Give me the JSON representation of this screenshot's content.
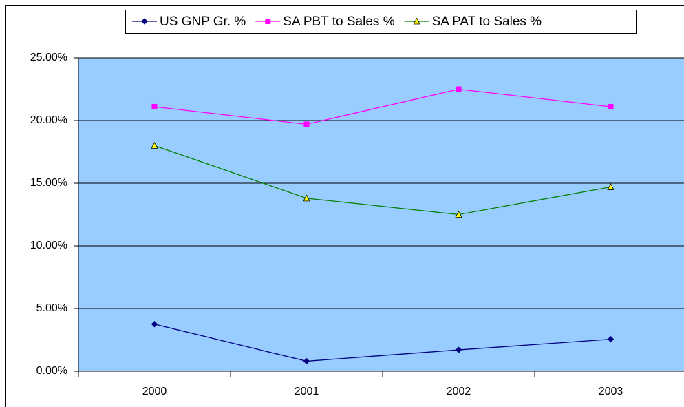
{
  "chart_data": {
    "type": "line",
    "categories": [
      "2000",
      "2001",
      "2002",
      "2003"
    ],
    "series": [
      {
        "name": "US GNP Gr. %",
        "color": "#000080",
        "marker": "diamond",
        "marker_color": "#000080",
        "values": [
          3.75,
          0.8,
          1.7,
          2.55
        ]
      },
      {
        "name": "SA PBT to Sales %",
        "color": "#ff00ff",
        "marker": "square",
        "marker_color": "#ff00ff",
        "values": [
          21.1,
          19.7,
          22.5,
          21.1
        ]
      },
      {
        "name": "SA PAT to Sales %",
        "color": "#008000",
        "marker": "triangle",
        "marker_color": "#ffff00",
        "values": [
          18.0,
          13.8,
          12.5,
          14.7
        ]
      }
    ],
    "ylim": [
      0,
      25
    ],
    "yticks": [
      {
        "value": 0,
        "label": "0.00%"
      },
      {
        "value": 5,
        "label": "5.00%"
      },
      {
        "value": 10,
        "label": "10.00%"
      },
      {
        "value": 15,
        "label": "15.00%"
      },
      {
        "value": 20,
        "label": "20.00%"
      },
      {
        "value": 25,
        "label": "25.00%"
      }
    ],
    "grid": true,
    "plot_background": "#99ccff",
    "legend": "top"
  }
}
